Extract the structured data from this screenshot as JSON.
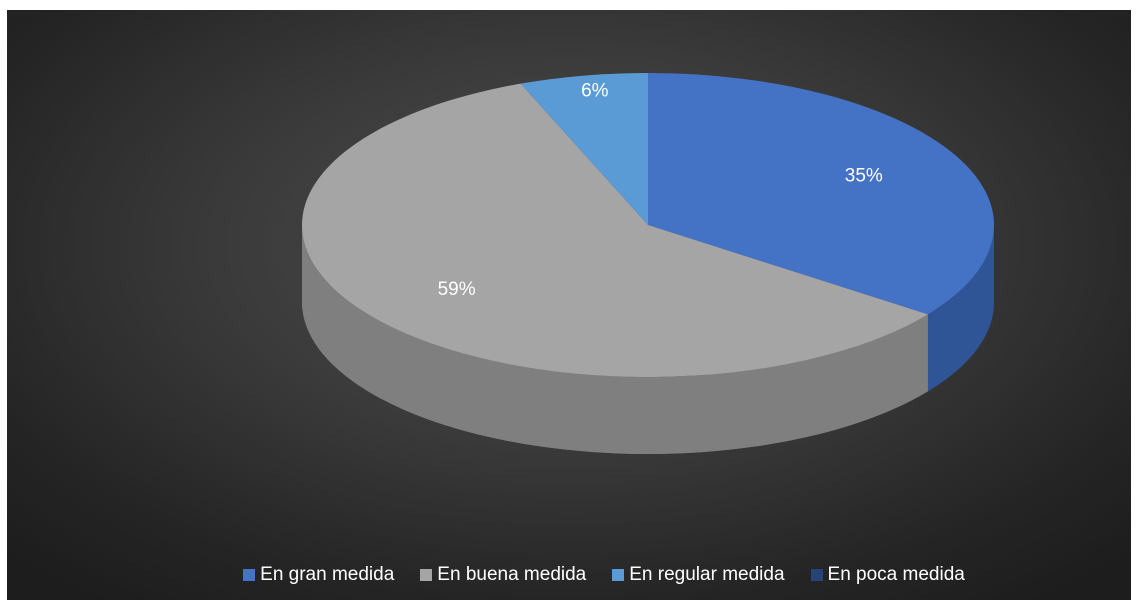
{
  "chart_data": {
    "type": "pie",
    "variant": "3d",
    "slices": [
      {
        "label": "En gran medida",
        "value": 35,
        "label_text": "35%",
        "color": "#4472C4",
        "side_color": "#2F5597"
      },
      {
        "label": "En buena medida",
        "value": 59,
        "label_text": "59%",
        "color": "#A5A5A5",
        "side_color": "#7F7F7F"
      },
      {
        "label": "En regular medida",
        "value": 6,
        "label_text": "6%",
        "color": "#5B9BD5",
        "side_color": "#41719C"
      },
      {
        "label": "En poca medida",
        "value": 0,
        "label_text": "",
        "color": "#264478",
        "side_color": "#1F3864"
      }
    ],
    "legend_position": "bottom",
    "start_angle": "12 o'clock, clockwise",
    "background": "#3a3a3a"
  }
}
